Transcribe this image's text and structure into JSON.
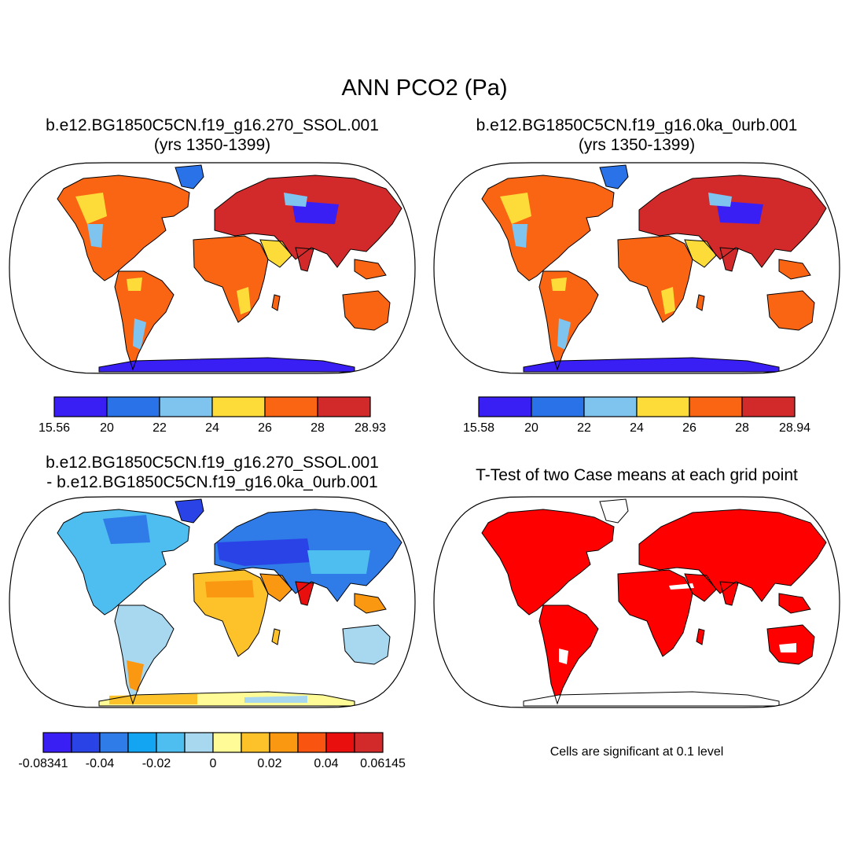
{
  "title": "ANN PCO2 (Pa)",
  "panels": [
    {
      "id": "case1",
      "title_line1": "b.e12.BG1850C5CN.f19_g16.270_SSOL.001",
      "title_line2": "(yrs 1350-1399)",
      "colorbar": {
        "colors": [
          "#3a1ff5",
          "#2a72e8",
          "#7ec4ef",
          "#fddc3a",
          "#fa6514",
          "#d22a2a"
        ],
        "ticks": [
          "15.56",
          "20",
          "22",
          "24",
          "26",
          "28",
          "28.93"
        ]
      }
    },
    {
      "id": "case2",
      "title_line1": "b.e12.BG1850C5CN.f19_g16.0ka_0urb.001",
      "title_line2": "(yrs 1350-1399)",
      "colorbar": {
        "colors": [
          "#3a1ff5",
          "#2a72e8",
          "#7ec4ef",
          "#fddc3a",
          "#fa6514",
          "#d22a2a"
        ],
        "ticks": [
          "15.58",
          "20",
          "22",
          "24",
          "26",
          "28",
          "28.94"
        ]
      }
    },
    {
      "id": "difference",
      "title_line1": "b.e12.BG1850C5CN.f19_g16.270_SSOL.001",
      "title_line2": "- b.e12.BG1850C5CN.f19_g16.0ka_0urb.001",
      "colorbar": {
        "colors": [
          "#3a1ff5",
          "#2a43e6",
          "#2f7be8",
          "#14a5f2",
          "#4ebdf0",
          "#a8d8f0",
          "#fffb96",
          "#fdc22a",
          "#fb9812",
          "#fa5510",
          "#ea0f0f",
          "#d22a2a"
        ],
        "ticks": [
          "-0.08341",
          "-0.04",
          "-0.02",
          "0",
          "0.02",
          "0.04",
          "0.06145"
        ]
      }
    },
    {
      "id": "ttest",
      "title_line1": "T-Test of two Case means at each grid point",
      "note": "Cells are significant at 0.1 level",
      "colors": {
        "significant": "#ff0000"
      }
    }
  ]
}
